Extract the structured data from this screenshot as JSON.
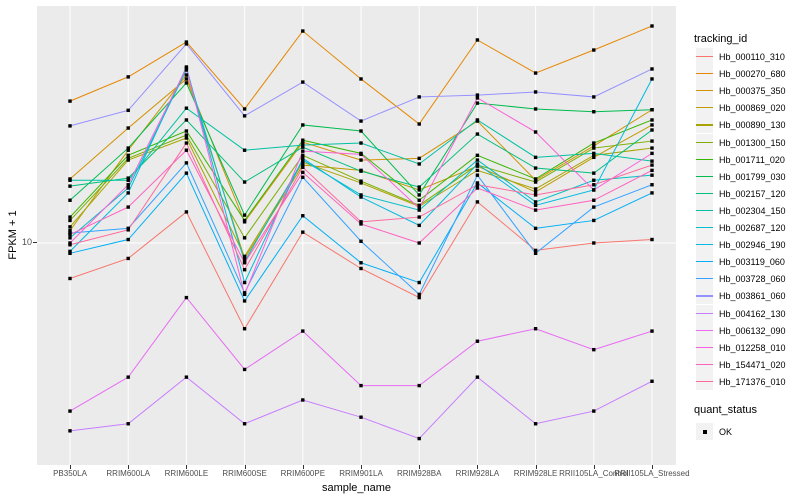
{
  "chart_data": {
    "type": "line",
    "title": "",
    "xlabel": "sample_name",
    "ylabel": "FPKM + 1",
    "y_scale": "log10",
    "y_tick_labels": [
      "10"
    ],
    "y_tick_values": [
      10
    ],
    "grid": "white-on-gray",
    "legend_position": "right",
    "panel_background": "#EBEBEB",
    "gridline_color": "#FFFFFF",
    "point_color": "#000000",
    "point_shape": "filled-square",
    "categories": [
      "PB350LA",
      "RRIM600LA",
      "RRIM600LE",
      "RRIM600SE",
      "RRIM600PE",
      "RRIM901LA",
      "RRIM928BA",
      "RRIM928LA",
      "RRIM928LE",
      "RRII105LA_Control",
      "RRII105LA_Stressed"
    ],
    "legend_title": "tracking_id",
    "series": [
      {
        "name": "Hb_000110_310",
        "color": "#F8766D",
        "values": [
          6.7,
          8.4,
          14.2,
          3.8,
          11.3,
          7.5,
          5.4,
          15.9,
          9.2,
          10.0,
          10.4
        ]
      },
      {
        "name": "Hb_000270_680",
        "color": "#E58700",
        "values": [
          49.6,
          65.2,
          96.6,
          45.4,
          109.4,
          63.7,
          38.3,
          98.9,
          68.1,
          88.3,
          115.8
        ]
      },
      {
        "name": "Hb_000375_350",
        "color": "#D39200",
        "values": [
          20.6,
          36.6,
          63.7,
          12.7,
          31.2,
          25.5,
          26.0,
          39.6,
          20.3,
          29.9,
          45.0
        ]
      },
      {
        "name": "Hb_000869_020",
        "color": "#BF9B00",
        "values": [
          11.5,
          28.5,
          66.6,
          8.4,
          24.1,
          22.7,
          18.2,
          23.8,
          17.8,
          26.3,
          37.9
        ]
      },
      {
        "name": "Hb_000890_130",
        "color": "#A8A400",
        "values": [
          12.0,
          25.5,
          32.7,
          8.6,
          24.9,
          19.7,
          15.1,
          22.7,
          18.4,
          26.9,
          29.2
        ]
      },
      {
        "name": "Hb_001300_150",
        "color": "#7CAE00",
        "values": [
          12.9,
          26.0,
          33.8,
          10.6,
          26.9,
          20.1,
          15.3,
          24.1,
          19.9,
          29.2,
          31.6
        ]
      },
      {
        "name": "Hb_001711_020",
        "color": "#39B600",
        "values": [
          13.4,
          26.9,
          35.4,
          12.9,
          31.9,
          27.5,
          16.2,
          26.9,
          20.6,
          30.9,
          40.1
        ]
      },
      {
        "name": "Hb_001799_030",
        "color": "#00BB4E",
        "values": [
          16.2,
          29.2,
          60.9,
          13.7,
          37.9,
          35.4,
          17.2,
          48.5,
          45.4,
          44.0,
          45.0
        ]
      },
      {
        "name": "Hb_002157_120",
        "color": "#00BF7D",
        "values": [
          19.0,
          20.8,
          40.1,
          19.9,
          29.5,
          22.5,
          18.8,
          34.2,
          23.3,
          22.0,
          35.8
        ]
      },
      {
        "name": "Hb_002304_150",
        "color": "#00C1A3",
        "values": [
          20.3,
          20.3,
          45.8,
          28.5,
          30.2,
          30.9,
          24.4,
          40.1,
          26.3,
          27.5,
          25.2
        ]
      },
      {
        "name": "Hb_002687_120",
        "color": "#00BFC4",
        "values": [
          10.6,
          18.6,
          70.5,
          8.1,
          25.5,
          17.2,
          14.5,
          25.5,
          15.9,
          20.3,
          21.5
        ]
      },
      {
        "name": "Hb_002946_190",
        "color": "#00BAE0",
        "values": [
          9.1,
          17.6,
          72.9,
          6.4,
          26.0,
          16.8,
          12.2,
          24.4,
          15.3,
          18.2,
          63.7
        ]
      },
      {
        "name": "Hb_003119_060",
        "color": "#00B0F6",
        "values": [
          8.9,
          10.4,
          22.0,
          5.2,
          13.6,
          8.0,
          6.4,
          19.7,
          11.8,
          12.9,
          17.6
        ]
      },
      {
        "name": "Hb_003728_060",
        "color": "#35A2FF",
        "values": [
          11.2,
          11.8,
          24.7,
          5.7,
          21.0,
          10.2,
          5.6,
          21.5,
          8.9,
          15.0,
          19.3
        ]
      },
      {
        "name": "Hb_003861_060",
        "color": "#9590FF",
        "values": [
          37.5,
          44.7,
          94.6,
          42.0,
          61.5,
          39.6,
          52.0,
          53.1,
          55.0,
          52.0,
          71.3
        ]
      },
      {
        "name": "Hb_004162_130",
        "color": "#C77CFF",
        "values": [
          1.2,
          1.3,
          2.2,
          1.3,
          1.7,
          1.4,
          1.1,
          2.2,
          1.3,
          1.5,
          2.1
        ]
      },
      {
        "name": "Hb_006132_090",
        "color": "#E76BF3",
        "values": [
          1.5,
          2.2,
          5.4,
          2.4,
          3.7,
          2.0,
          2.0,
          3.3,
          3.8,
          3.0,
          3.7
        ]
      },
      {
        "name": "Hb_012258_010",
        "color": "#FA62DB",
        "values": [
          10.0,
          19.3,
          72.0,
          5.6,
          28.2,
          27.2,
          14.8,
          51.4,
          35.0,
          18.2,
          27.5
        ]
      },
      {
        "name": "Hb_154471_020",
        "color": "#FF61BF",
        "values": [
          11.0,
          15.0,
          28.5,
          8.0,
          22.2,
          12.4,
          10.0,
          18.6,
          14.5,
          16.2,
          22.7
        ]
      },
      {
        "name": "Hb_171376_010",
        "color": "#FF689E",
        "values": [
          9.8,
          11.6,
          30.9,
          7.4,
          23.5,
          12.7,
          13.4,
          19.3,
          17.2,
          19.3,
          24.1
        ]
      }
    ],
    "legend2": {
      "title": "quant_status",
      "items": [
        {
          "label": "OK",
          "shape": "filled-square",
          "color": "#000000"
        }
      ]
    }
  }
}
